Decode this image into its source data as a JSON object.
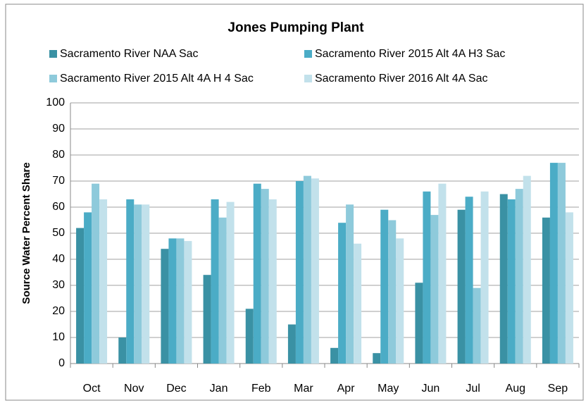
{
  "chart_data": {
    "type": "bar",
    "title": "Jones Pumping Plant",
    "y_label": "Source Water Percent Share",
    "categories": [
      "Oct",
      "Nov",
      "Dec",
      "Jan",
      "Feb",
      "Mar",
      "Apr",
      "May",
      "Jun",
      "Jul",
      "Aug",
      "Sep"
    ],
    "series": [
      {
        "name": "Sacramento River NAA Sac",
        "color": "#3a91a4",
        "values": [
          52,
          10,
          44,
          34,
          21,
          15,
          6,
          4,
          31,
          59,
          65,
          56
        ]
      },
      {
        "name": "Sacramento River 2015 Alt 4A H3 Sac",
        "color": "#4bacc6",
        "values": [
          58,
          63,
          48,
          63,
          69,
          70,
          54,
          59,
          66,
          64,
          63,
          77
        ]
      },
      {
        "name": "Sacramento River 2015 Alt 4A H 4 Sac",
        "color": "#8ecadb",
        "values": [
          69,
          61,
          48,
          56,
          67,
          72,
          61,
          55,
          57,
          29,
          67,
          77
        ]
      },
      {
        "name": "Sacramento River 2016 Alt 4A Sac",
        "color": "#c2e1eb",
        "values": [
          63,
          61,
          47,
          62,
          63,
          71,
          46,
          48,
          69,
          66,
          72,
          58
        ]
      }
    ],
    "ylim": [
      0,
      100
    ],
    "yticks": [
      0,
      10,
      20,
      30,
      40,
      50,
      60,
      70,
      80,
      90,
      100
    ],
    "grid": true
  }
}
